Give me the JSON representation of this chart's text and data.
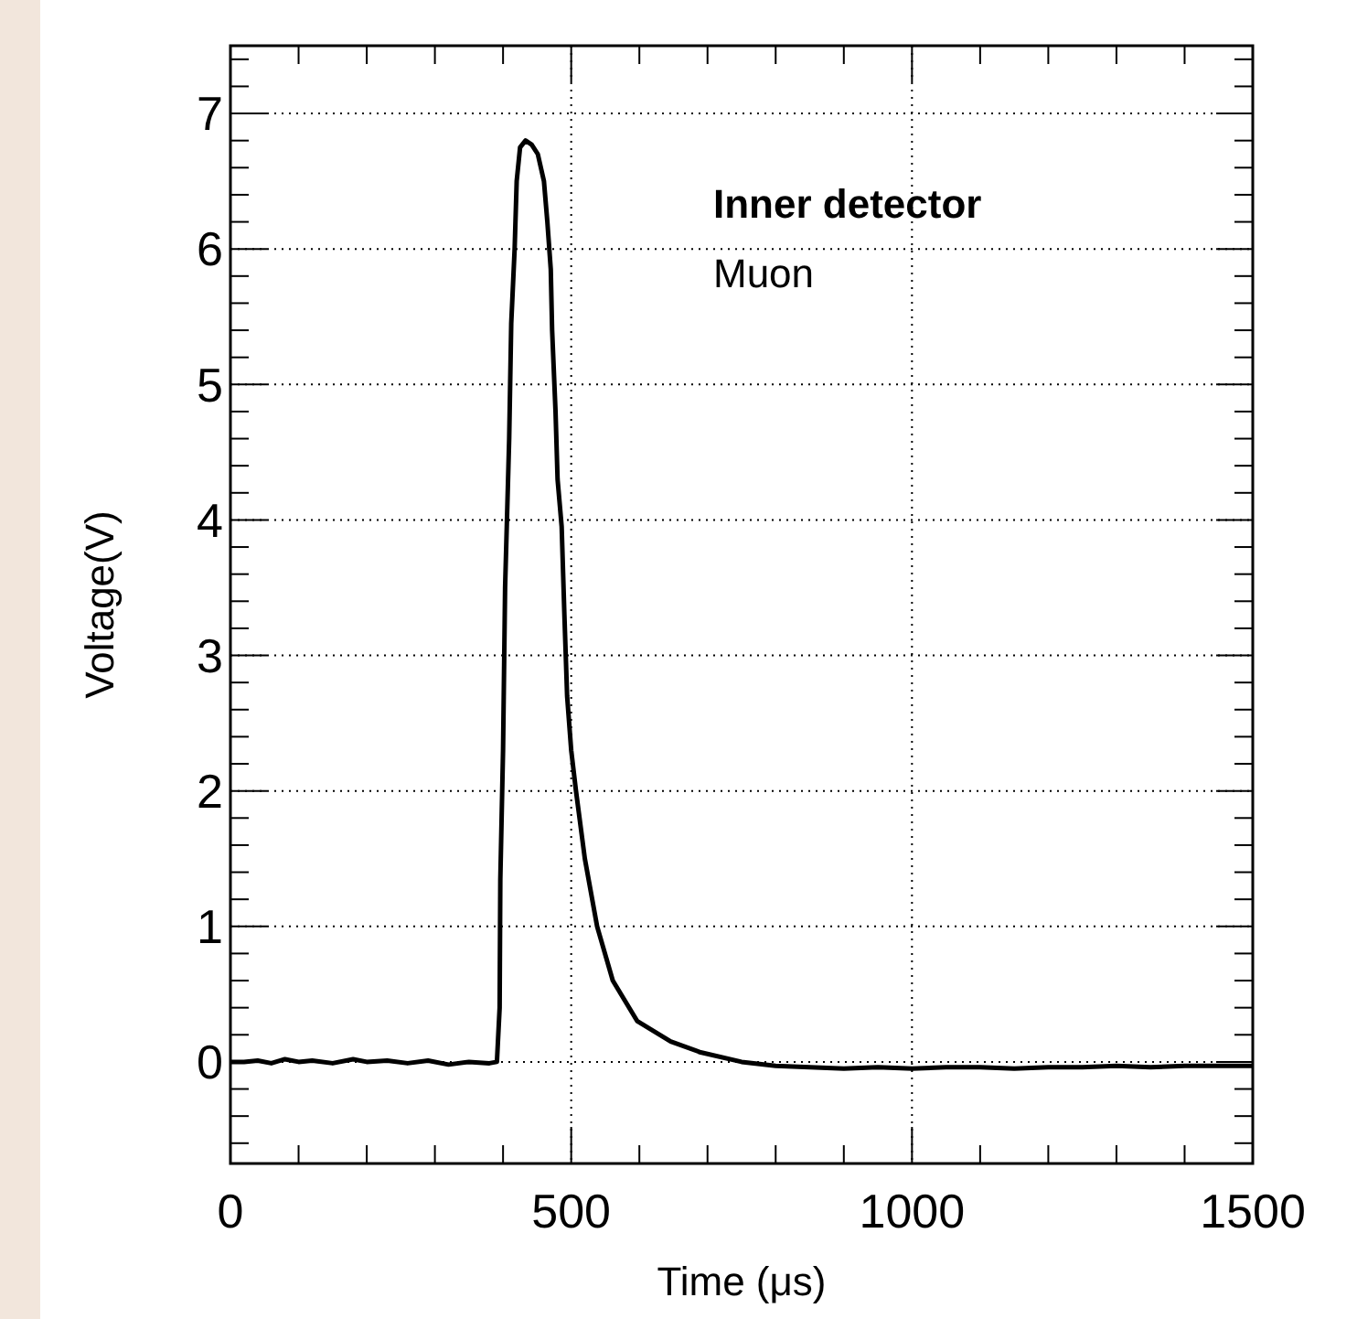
{
  "chart_data": {
    "type": "line",
    "xlabel": "Time (μs)",
    "ylabel": "Voltage(V)",
    "annotations": [
      "Inner detector",
      "Muon"
    ],
    "xlim": [
      0,
      1500
    ],
    "ylim": [
      -0.75,
      7.5
    ],
    "xticks": [
      0,
      {
        "value": 100,
        "label": null
      },
      {
        "value": 200,
        "label": null
      },
      {
        "value": 300,
        "label": null
      },
      {
        "value": 400,
        "label": null
      },
      500,
      {
        "value": 600,
        "label": null
      },
      {
        "value": 700,
        "label": null
      },
      {
        "value": 800,
        "label": null
      },
      {
        "value": 900,
        "label": null
      },
      1000,
      {
        "value": 1100,
        "label": null
      },
      {
        "value": 1200,
        "label": null
      },
      {
        "value": 1300,
        "label": null
      },
      {
        "value": 1400,
        "label": null
      },
      1500
    ],
    "yticks": [
      {
        "value": -0.6,
        "label": null
      },
      {
        "value": -0.4,
        "label": null
      },
      {
        "value": -0.2,
        "label": null
      },
      0,
      {
        "value": 0.2,
        "label": null
      },
      {
        "value": 0.4,
        "label": null
      },
      {
        "value": 0.6,
        "label": null
      },
      {
        "value": 0.8,
        "label": null
      },
      1,
      {
        "value": 1.2,
        "label": null
      },
      {
        "value": 1.4,
        "label": null
      },
      {
        "value": 1.6,
        "label": null
      },
      {
        "value": 1.8,
        "label": null
      },
      2,
      {
        "value": 2.2,
        "label": null
      },
      {
        "value": 2.4,
        "label": null
      },
      {
        "value": 2.6,
        "label": null
      },
      {
        "value": 2.8,
        "label": null
      },
      3,
      {
        "value": 3.2,
        "label": null
      },
      {
        "value": 3.4,
        "label": null
      },
      {
        "value": 3.6,
        "label": null
      },
      {
        "value": 3.8,
        "label": null
      },
      4,
      {
        "value": 4.2,
        "label": null
      },
      {
        "value": 4.4,
        "label": null
      },
      {
        "value": 4.6,
        "label": null
      },
      {
        "value": 4.8,
        "label": null
      },
      5,
      {
        "value": 5.2,
        "label": null
      },
      {
        "value": 5.4,
        "label": null
      },
      {
        "value": 5.6,
        "label": null
      },
      {
        "value": 5.8,
        "label": null
      },
      6,
      {
        "value": 6.2,
        "label": null
      },
      {
        "value": 6.4,
        "label": null
      },
      {
        "value": 6.6,
        "label": null
      },
      {
        "value": 6.8,
        "label": null
      },
      7,
      {
        "value": 7.2,
        "label": null
      },
      {
        "value": 7.4,
        "label": null
      }
    ],
    "grid": true,
    "marker": "none",
    "line_style": "solid",
    "series": [
      {
        "color": "#000000",
        "x": [
          0,
          20,
          40,
          60,
          80,
          100,
          120,
          150,
          180,
          200,
          230,
          260,
          290,
          320,
          350,
          380,
          391,
          395,
          396,
          400,
          403,
          409,
          412,
          417,
          420,
          425,
          433,
          442,
          451,
          460,
          465,
          470,
          472,
          477,
          480,
          486,
          490,
          494,
          500,
          507,
          520,
          538,
          561,
          597,
          646,
          690,
          750,
          800,
          850,
          900,
          950,
          1000,
          1050,
          1100,
          1150,
          1200,
          1250,
          1300,
          1350,
          1400,
          1450,
          1500
        ],
        "values": [
          0,
          0,
          0.01,
          -0.01,
          0.02,
          0,
          0.01,
          -0.01,
          0.02,
          0,
          0.01,
          -0.01,
          0.01,
          -0.02,
          0,
          -0.01,
          0,
          0.4,
          1.35,
          2.3,
          3.5,
          4.6,
          5.45,
          6.0,
          6.5,
          6.75,
          6.8,
          6.77,
          6.7,
          6.5,
          6.2,
          5.85,
          5.4,
          4.8,
          4.3,
          3.95,
          3.3,
          2.7,
          2.3,
          2.0,
          1.5,
          1.0,
          0.6,
          0.3,
          0.15,
          0.07,
          0.0,
          -0.03,
          -0.04,
          -0.05,
          -0.04,
          -0.05,
          -0.04,
          -0.04,
          -0.05,
          -0.04,
          -0.04,
          -0.03,
          -0.04,
          -0.03,
          -0.03,
          -0.03
        ]
      }
    ]
  }
}
